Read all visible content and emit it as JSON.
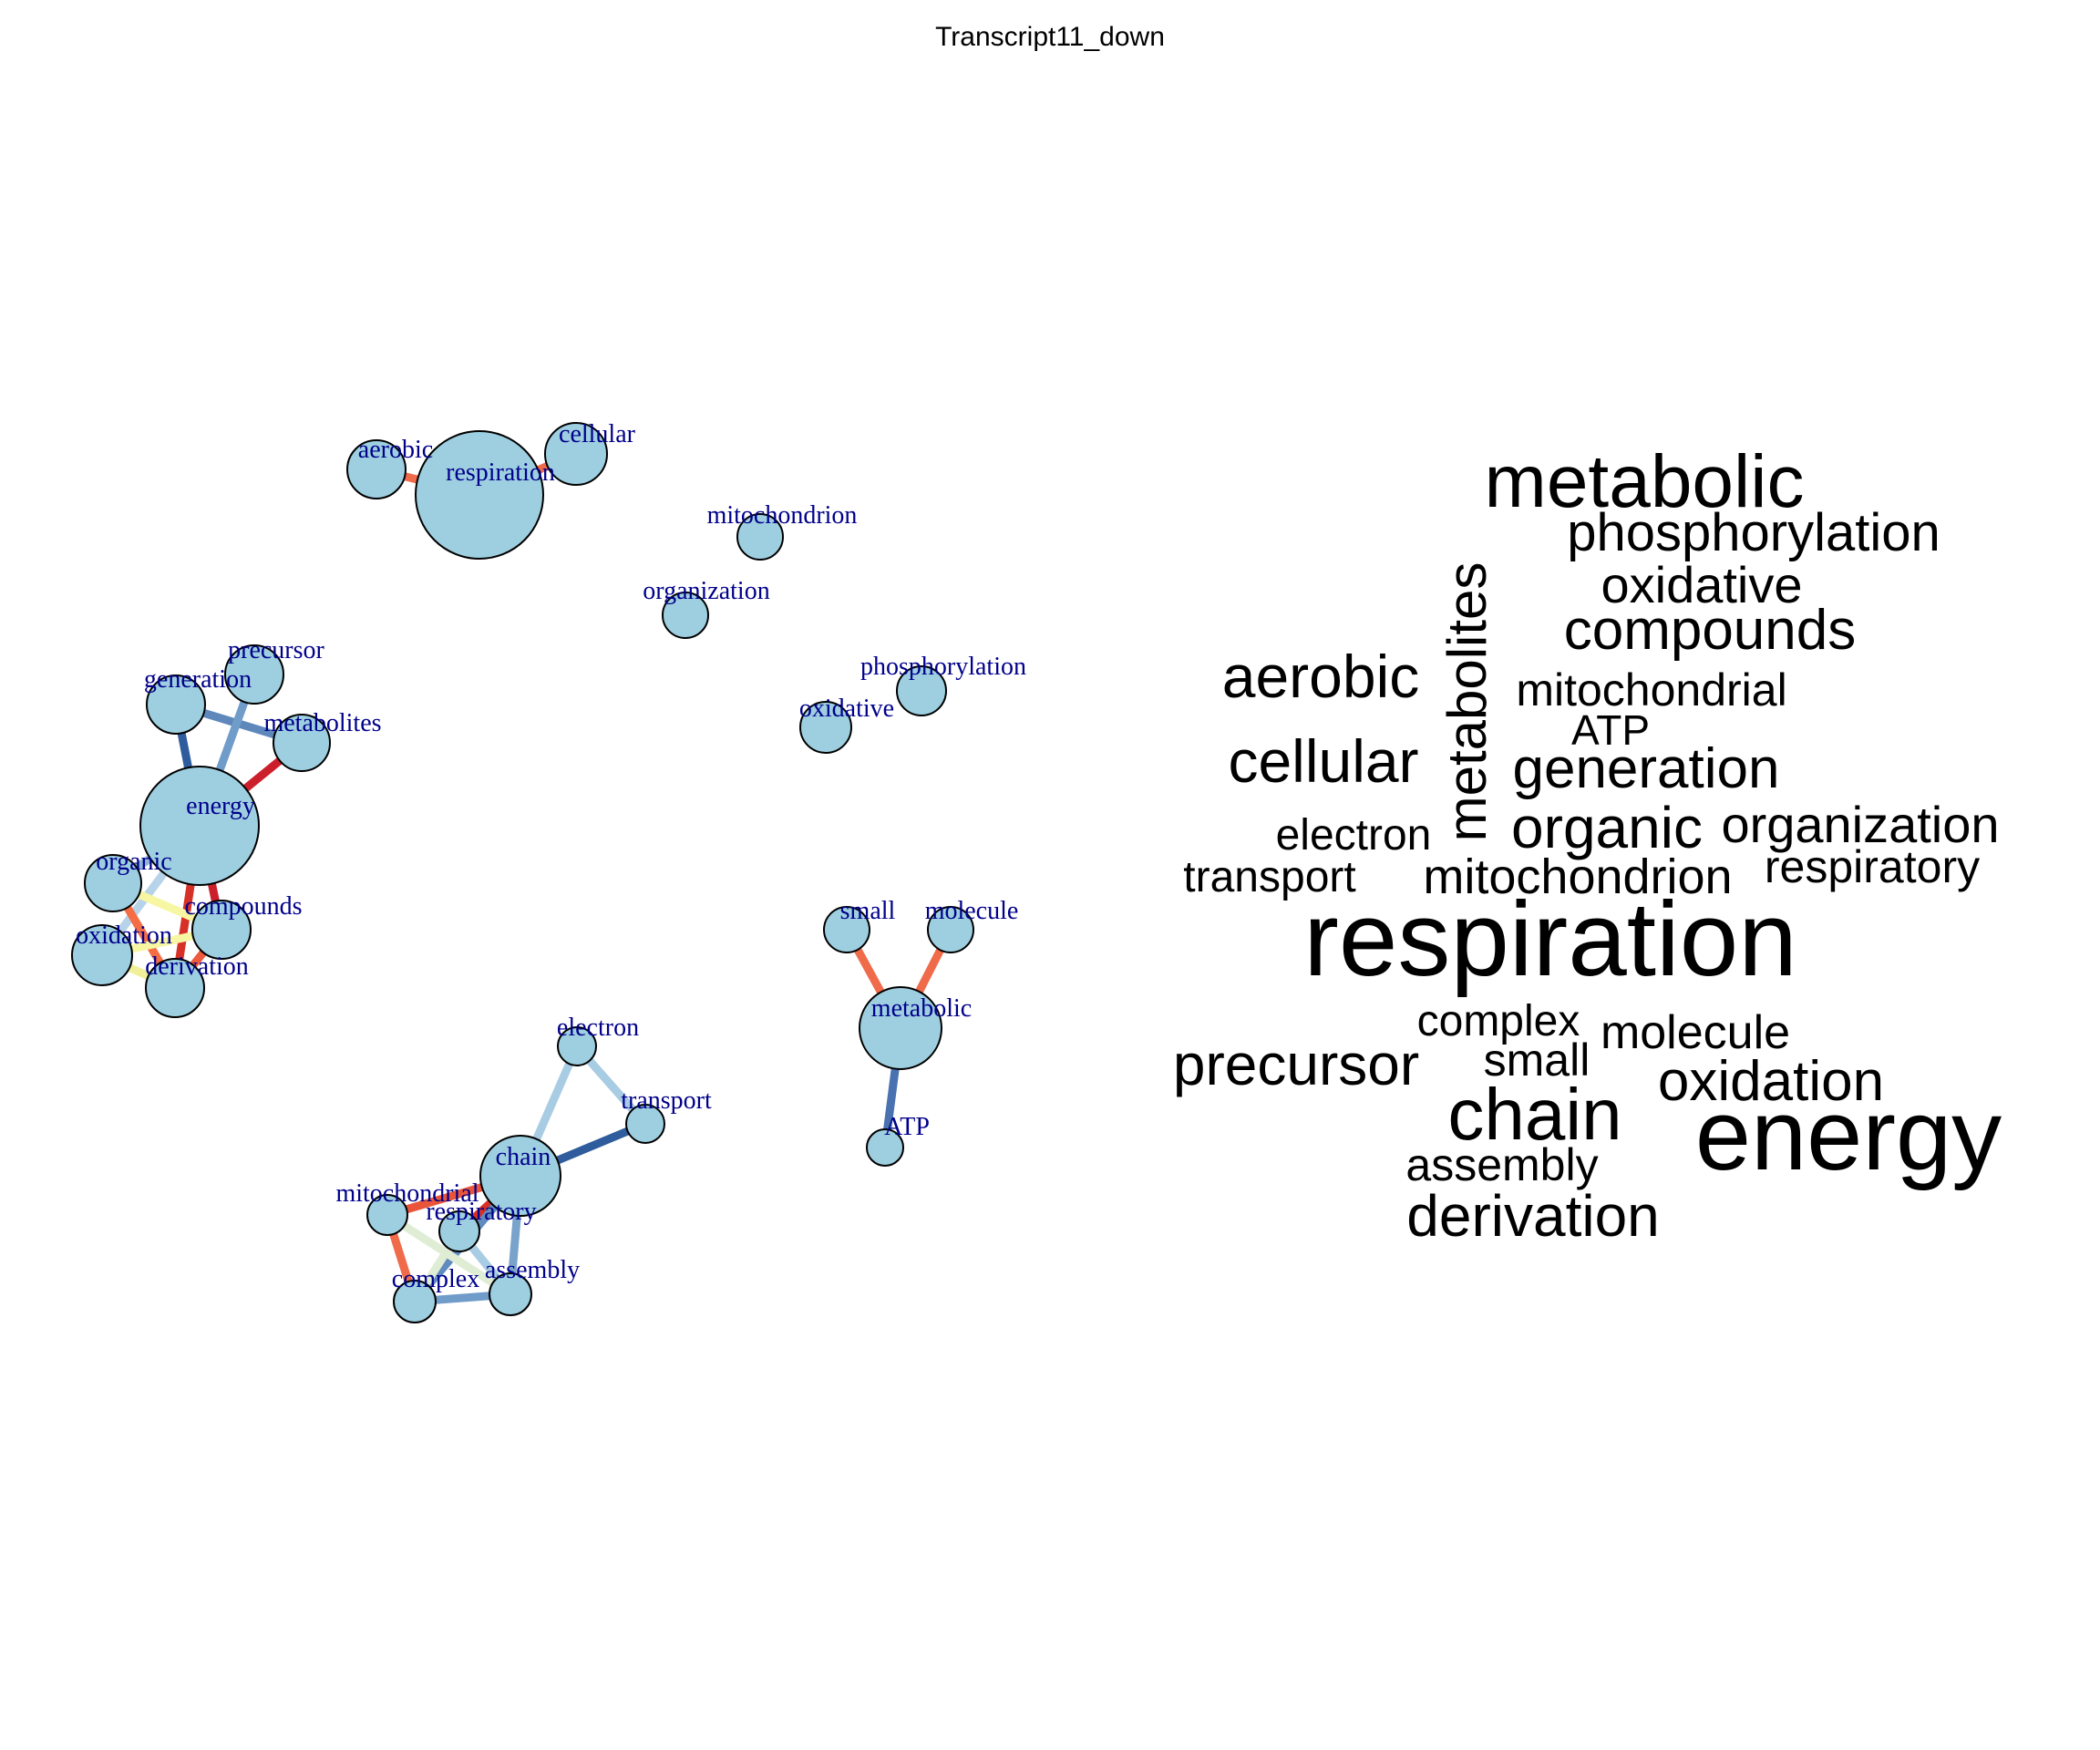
{
  "title": "Transcript11_down",
  "colors": {
    "node_fill": "#9ECFE0",
    "node_stroke": "#000000",
    "label": "#00008B",
    "background": "#FFFFFF"
  },
  "network": {
    "nodes": [
      {
        "id": "aerobic",
        "label": "aerobic"
      },
      {
        "id": "respiration",
        "label": "respiration"
      },
      {
        "id": "cellular",
        "label": "cellular"
      },
      {
        "id": "mitochondrion",
        "label": "mitochondrion"
      },
      {
        "id": "organization",
        "label": "organization"
      },
      {
        "id": "precursor",
        "label": "precursor"
      },
      {
        "id": "generation",
        "label": "generation"
      },
      {
        "id": "metabolites",
        "label": "metabolites"
      },
      {
        "id": "energy",
        "label": "energy"
      },
      {
        "id": "organic",
        "label": "organic"
      },
      {
        "id": "compounds",
        "label": "compounds"
      },
      {
        "id": "oxidation",
        "label": "oxidation"
      },
      {
        "id": "derivation",
        "label": "derivation"
      },
      {
        "id": "phosphorylation",
        "label": "phosphorylation"
      },
      {
        "id": "oxidative",
        "label": "oxidative"
      },
      {
        "id": "small",
        "label": "small"
      },
      {
        "id": "molecule",
        "label": "molecule"
      },
      {
        "id": "metabolic",
        "label": "metabolic"
      },
      {
        "id": "ATP",
        "label": "ATP"
      },
      {
        "id": "electron",
        "label": "electron"
      },
      {
        "id": "transport",
        "label": "transport"
      },
      {
        "id": "chain",
        "label": "chain"
      },
      {
        "id": "mitochondrial",
        "label": "mitochondrial"
      },
      {
        "id": "respiratory",
        "label": "respiratory"
      },
      {
        "id": "complex",
        "label": "complex"
      },
      {
        "id": "assembly",
        "label": "assembly"
      }
    ],
    "edges": [
      {
        "from": "aerobic",
        "to": "respiration",
        "color": "#EF6B4A"
      },
      {
        "from": "respiration",
        "to": "cellular",
        "color": "#EF6B4A"
      },
      {
        "from": "generation",
        "to": "energy",
        "color": "#2F5C9C"
      },
      {
        "from": "generation",
        "to": "metabolites",
        "color": "#5E88BC"
      },
      {
        "from": "precursor",
        "to": "energy",
        "color": "#6F9CC8"
      },
      {
        "from": "metabolites",
        "to": "energy",
        "color": "#CC1F2C"
      },
      {
        "from": "energy",
        "to": "organic",
        "color": "#8FB4D8"
      },
      {
        "from": "energy",
        "to": "compounds",
        "color": "#CC1F2C"
      },
      {
        "from": "energy",
        "to": "derivation",
        "color": "#D73027"
      },
      {
        "from": "energy",
        "to": "oxidation",
        "color": "#B7D3EA"
      },
      {
        "from": "organic",
        "to": "compounds",
        "color": "#F7F6A3"
      },
      {
        "from": "organic",
        "to": "derivation",
        "color": "#F46D43"
      },
      {
        "from": "oxidation",
        "to": "compounds",
        "color": "#F7F6A3"
      },
      {
        "from": "oxidation",
        "to": "derivation",
        "color": "#F0F09A"
      },
      {
        "from": "compounds",
        "to": "derivation",
        "color": "#EE5A3E"
      },
      {
        "from": "small",
        "to": "metabolic",
        "color": "#EF6B4A"
      },
      {
        "from": "molecule",
        "to": "metabolic",
        "color": "#EF6B4A"
      },
      {
        "from": "metabolic",
        "to": "ATP",
        "color": "#4A72B0"
      },
      {
        "from": "electron",
        "to": "transport",
        "color": "#A8CCE3"
      },
      {
        "from": "electron",
        "to": "chain",
        "color": "#A8CCE3"
      },
      {
        "from": "chain",
        "to": "transport",
        "color": "#2F5C9C"
      },
      {
        "from": "chain",
        "to": "mitochondrial",
        "color": "#E8553A"
      },
      {
        "from": "chain",
        "to": "respiratory",
        "color": "#D73027"
      },
      {
        "from": "chain",
        "to": "assembly",
        "color": "#7AA3CC"
      },
      {
        "from": "chain",
        "to": "complex",
        "color": "#5F8BBF"
      },
      {
        "from": "mitochondrial",
        "to": "complex",
        "color": "#EF6B4A"
      },
      {
        "from": "mitochondrial",
        "to": "assembly",
        "color": "#E0EDD5"
      },
      {
        "from": "respiratory",
        "to": "complex",
        "color": "#E0EDD5"
      },
      {
        "from": "respiratory",
        "to": "assembly",
        "color": "#A8CCE3"
      },
      {
        "from": "complex",
        "to": "assembly",
        "color": "#6F9CC8"
      }
    ]
  },
  "wordcloud": {
    "words": [
      {
        "text": "metabolic"
      },
      {
        "text": "phosphorylation"
      },
      {
        "text": "oxidative"
      },
      {
        "text": "compounds"
      },
      {
        "text": "aerobic"
      },
      {
        "text": "metabolites"
      },
      {
        "text": "mitochondrial"
      },
      {
        "text": "ATP"
      },
      {
        "text": "cellular"
      },
      {
        "text": "generation"
      },
      {
        "text": "electron"
      },
      {
        "text": "organic"
      },
      {
        "text": "organization"
      },
      {
        "text": "transport"
      },
      {
        "text": "mitochondrion"
      },
      {
        "text": "respiratory"
      },
      {
        "text": "respiration"
      },
      {
        "text": "complex"
      },
      {
        "text": "molecule"
      },
      {
        "text": "precursor"
      },
      {
        "text": "small"
      },
      {
        "text": "oxidation"
      },
      {
        "text": "chain"
      },
      {
        "text": "energy"
      },
      {
        "text": "assembly"
      },
      {
        "text": "derivation"
      }
    ]
  }
}
